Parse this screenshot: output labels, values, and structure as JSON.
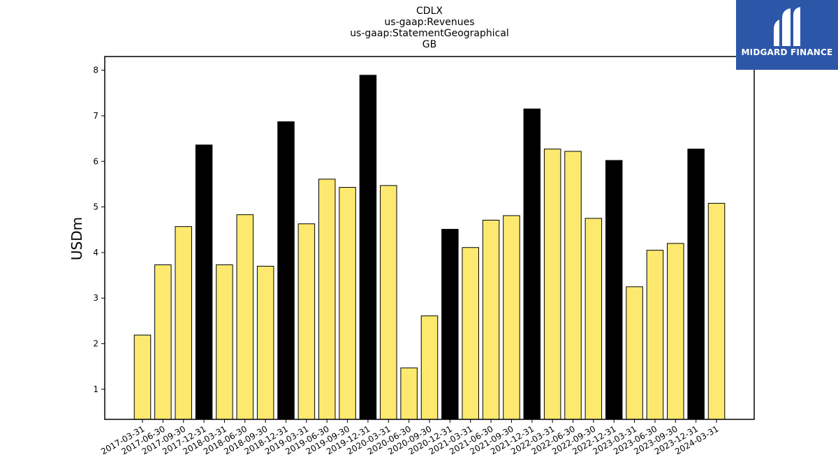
{
  "brand": {
    "name": "MIDGARD FINANCE"
  },
  "colors": {
    "normal_bar": "#fde96f",
    "q4_bar": "#000000",
    "logo_bg": "#2c56a8"
  },
  "chart_data": {
    "type": "bar",
    "title_lines": [
      "CDLX",
      "us-gaap:Revenues",
      "us-gaap:StatementGeographical",
      "GB"
    ],
    "xlabel": "",
    "ylabel": "USDm",
    "ylim": [
      0.34,
      8.3
    ],
    "yticks": [
      1,
      2,
      3,
      4,
      5,
      6,
      7,
      8
    ],
    "grid": false,
    "categories": [
      "2017-03-31",
      "2017-06-30",
      "2017-09-30",
      "2017-12-31",
      "2018-03-31",
      "2018-06-30",
      "2018-09-30",
      "2018-12-31",
      "2019-03-31",
      "2019-06-30",
      "2019-09-30",
      "2019-12-31",
      "2020-03-31",
      "2020-06-30",
      "2020-09-30",
      "2020-12-31",
      "2021-03-31",
      "2021-06-30",
      "2021-09-30",
      "2021-12-31",
      "2022-03-31",
      "2022-06-30",
      "2022-09-30",
      "2022-12-31",
      "2023-03-31",
      "2023-06-30",
      "2023-09-30",
      "2023-12-31",
      "2024-03-31"
    ],
    "values": [
      2.19,
      3.73,
      4.57,
      6.36,
      3.73,
      4.83,
      3.7,
      6.87,
      4.63,
      5.61,
      5.43,
      7.89,
      5.47,
      1.47,
      2.61,
      4.51,
      4.11,
      4.71,
      4.81,
      7.15,
      6.27,
      6.22,
      4.75,
      6.02,
      3.25,
      4.05,
      4.2,
      6.27,
      5.08
    ],
    "highlight": [
      false,
      false,
      false,
      true,
      false,
      false,
      false,
      true,
      false,
      false,
      false,
      true,
      false,
      false,
      false,
      true,
      false,
      false,
      false,
      true,
      false,
      false,
      false,
      true,
      false,
      false,
      false,
      true,
      false
    ]
  }
}
